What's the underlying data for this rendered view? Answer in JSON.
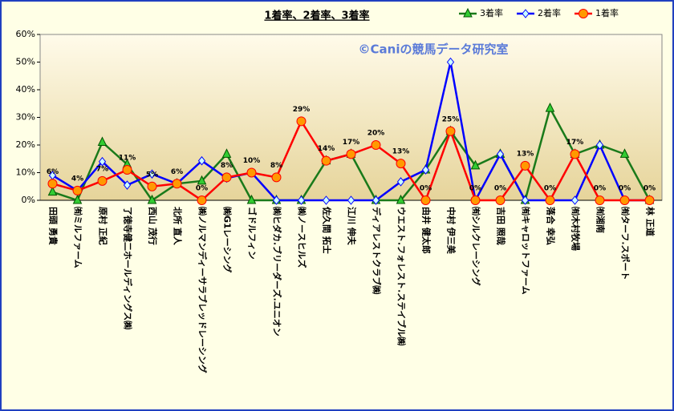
{
  "chart_data": {
    "type": "line",
    "title": "1着率、2着率、3着率",
    "watermark": "©Caniの競馬データ研究室",
    "categories": [
      "田頭 勇貴",
      "㈲ミルファーム",
      "原村 正紀",
      "了徳寺健二ホールディングス㈱",
      "西山 茂行",
      "北所 直人",
      "㈱ノルマンディーサラブレッドレーシング",
      "㈱G1レーシング",
      "ゴドルフィン",
      "㈱ヒダカ.ブリーダーズ.ユニオン",
      "㈱ノースヒルズ",
      "佐久間 拓士",
      "江川 伸夫",
      "ディアレストクラブ㈱",
      "ウエスト.フォレスト.ステイブル㈱",
      "由井 健太郎",
      "中村 伊三美",
      "㈲シルクレーシング",
      "吉田 照哉",
      "㈲キャロットファーム",
      "落合 幸弘",
      "㈲木村牧場",
      "㈲湘南",
      "㈲ターフ.スポート",
      "林 正道"
    ],
    "ylim": [
      0,
      60
    ],
    "yticks": [
      {
        "value": 0,
        "label": "0%"
      },
      {
        "value": 10,
        "label": "10%"
      },
      {
        "value": 20,
        "label": "20%"
      },
      {
        "value": 30,
        "label": "30%"
      },
      {
        "value": 40,
        "label": "40%"
      },
      {
        "value": 50,
        "label": "50%"
      },
      {
        "value": 60,
        "label": "60%"
      }
    ],
    "legend": "top-right",
    "series": [
      {
        "name": "3着率",
        "color": "#1a7a1a",
        "marker": "triangle",
        "values": [
          3,
          0,
          21,
          13,
          0,
          6,
          7,
          16.7,
          0,
          0,
          0,
          14.3,
          16.7,
          0,
          0,
          11,
          25,
          12.5,
          16.7,
          0,
          33.3,
          16.7,
          20,
          16.7,
          0
        ]
      },
      {
        "name": "2着率",
        "color": "#0000ff",
        "marker": "diamond",
        "values": [
          9,
          3.5,
          14,
          5.5,
          9.5,
          6,
          14.3,
          8,
          10,
          0,
          0,
          0,
          0,
          0,
          6.7,
          11,
          50,
          0,
          16.7,
          0,
          0,
          0,
          20,
          0,
          0
        ]
      },
      {
        "name": "1着率",
        "color": "#ff0000",
        "marker": "circle",
        "values": [
          6,
          3.5,
          7,
          11,
          5,
          6,
          0,
          8.3,
          10,
          8.3,
          28.6,
          14.3,
          16.7,
          20,
          13.3,
          0,
          25,
          0,
          0,
          12.5,
          0,
          16.7,
          0,
          0,
          0
        ],
        "value_labels": [
          "6%",
          "4%",
          "7%",
          "11%",
          "5%",
          "6%",
          "0%",
          "8%",
          "10%",
          "8%",
          "29%",
          "14%",
          "17%",
          "20%",
          "13%",
          "0%",
          "25%",
          "0%",
          "0%",
          "13%",
          "0%",
          "17%",
          "0%",
          "0%",
          "0%"
        ]
      }
    ]
  }
}
